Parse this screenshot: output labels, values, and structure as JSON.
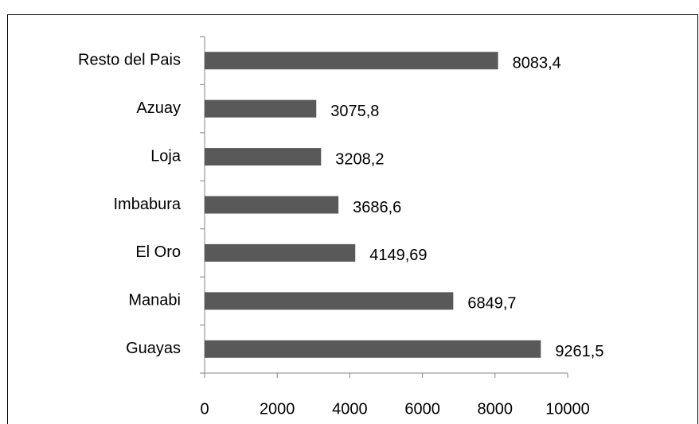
{
  "chart_data": {
    "type": "bar",
    "orientation": "horizontal",
    "categories": [
      "Resto del Pais",
      "Azuay",
      "Loja",
      "Imbabura",
      "El Oro",
      "Manabi",
      "Guayas"
    ],
    "values": [
      8083.4,
      3075.8,
      3208.2,
      3686.6,
      4149.69,
      6849.7,
      9261.5
    ],
    "value_labels": [
      "8083,4",
      "3075,8",
      "3208,2",
      "3686,6",
      "4149,69",
      "6849,7",
      "9261,5"
    ],
    "color": "#595959",
    "xlim": [
      0,
      10000
    ],
    "xticks": [
      0,
      2000,
      4000,
      6000,
      8000,
      10000
    ],
    "grid": false
  }
}
